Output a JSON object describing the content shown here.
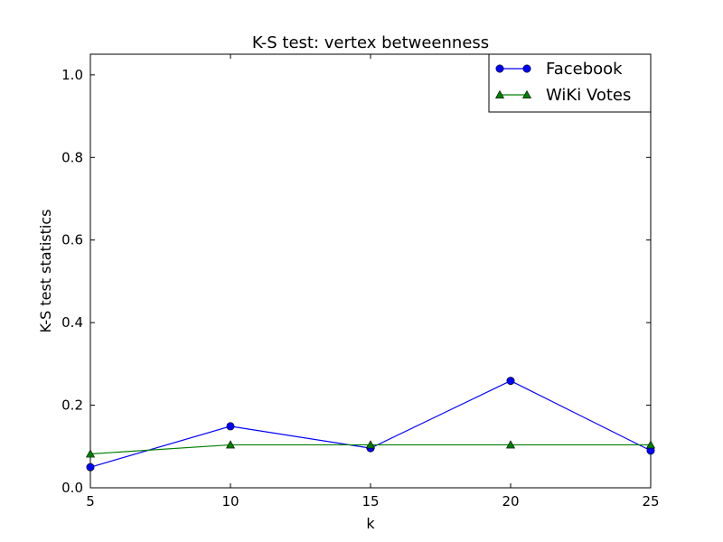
{
  "chart_data": {
    "type": "line",
    "title": "K-S test: vertex betweenness",
    "xlabel": "k",
    "ylabel": "K-S test statistics",
    "xlim": [
      5,
      25
    ],
    "ylim": [
      0.0,
      1.05
    ],
    "x_ticks": [
      "5",
      "10",
      "15",
      "20",
      "25"
    ],
    "y_ticks": [
      "0.0",
      "0.2",
      "0.4",
      "0.6",
      "0.8",
      "1.0"
    ],
    "grid": false,
    "legend_position": "top-right",
    "series": [
      {
        "name": "Facebook",
        "color": "#0000ff",
        "marker": "circle",
        "x": [
          5,
          10,
          15,
          20,
          25
        ],
        "y": [
          0.05,
          0.149,
          0.096,
          0.259,
          0.09
        ]
      },
      {
        "name": "WiKi Votes",
        "color": "#007f00",
        "marker": "triangle",
        "x": [
          5,
          10,
          15,
          20,
          25
        ],
        "y": [
          0.082,
          0.104,
          0.104,
          0.104,
          0.104
        ]
      }
    ]
  }
}
